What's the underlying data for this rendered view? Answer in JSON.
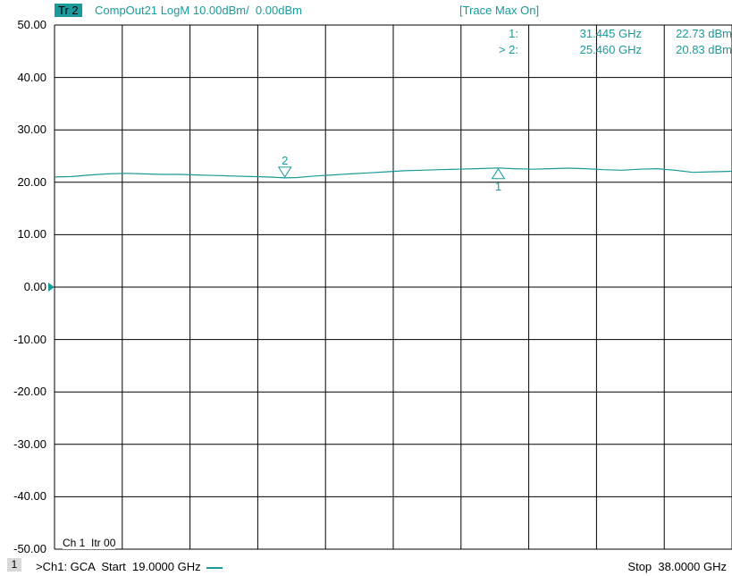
{
  "header": {
    "trace_badge": "Tr 2",
    "trace_desc": "CompOut21 LogM 10.00dBm/  0.00dBm",
    "trace_max": "[Trace Max On]"
  },
  "markers": [
    {
      "id": "1:",
      "freq": "31.445 GHz",
      "value": "22.73 dBm"
    },
    {
      "id": "> 2:",
      "freq": "25.460 GHz",
      "value": "20.83 dBm"
    }
  ],
  "channel_label": "Ch 1  Itr 00",
  "footer": {
    "channel_number": "1",
    "left_text": ">Ch1: GCA  Start  19.0000 GHz",
    "stop_text": "Stop  38.0000 GHz"
  },
  "colors": {
    "trace": "#1a9a9a",
    "grid": "#000000"
  },
  "chart_data": {
    "type": "line",
    "title": "",
    "xlabel": "",
    "ylabel": "",
    "xlim": [
      19.0,
      38.0
    ],
    "ylim": [
      -50,
      50
    ],
    "x_divisions": 10,
    "y_ticks": [
      "50.00",
      "40.00",
      "30.00",
      "20.00",
      "10.00",
      "0.00",
      "-10.00",
      "-20.00",
      "-30.00",
      "-40.00",
      "-50.00"
    ],
    "series": [
      {
        "x": [
          19.0,
          19.5,
          20.0,
          20.5,
          21.0,
          21.5,
          22.0,
          22.5,
          23.0,
          23.5,
          24.0,
          24.5,
          25.0,
          25.46,
          25.8,
          26.3,
          26.8,
          27.3,
          27.8,
          28.3,
          28.8,
          29.3,
          29.8,
          30.3,
          30.8,
          31.445,
          31.9,
          32.4,
          32.9,
          33.4,
          33.9,
          34.4,
          34.9,
          35.4,
          35.9,
          36.4,
          36.9,
          37.4,
          38.0
        ],
        "y": [
          21.0,
          21.1,
          21.4,
          21.6,
          21.7,
          21.6,
          21.5,
          21.5,
          21.4,
          21.3,
          21.2,
          21.1,
          21.0,
          20.83,
          20.9,
          21.2,
          21.4,
          21.6,
          21.8,
          22.0,
          22.2,
          22.3,
          22.4,
          22.5,
          22.6,
          22.73,
          22.6,
          22.5,
          22.6,
          22.7,
          22.6,
          22.4,
          22.3,
          22.5,
          22.6,
          22.3,
          21.9,
          22.0,
          22.1
        ]
      }
    ],
    "markers": [
      {
        "label": "1",
        "x": 31.445,
        "y": 22.73,
        "direction": "up"
      },
      {
        "label": "2",
        "x": 25.46,
        "y": 20.83,
        "direction": "down"
      }
    ],
    "grid": true
  }
}
